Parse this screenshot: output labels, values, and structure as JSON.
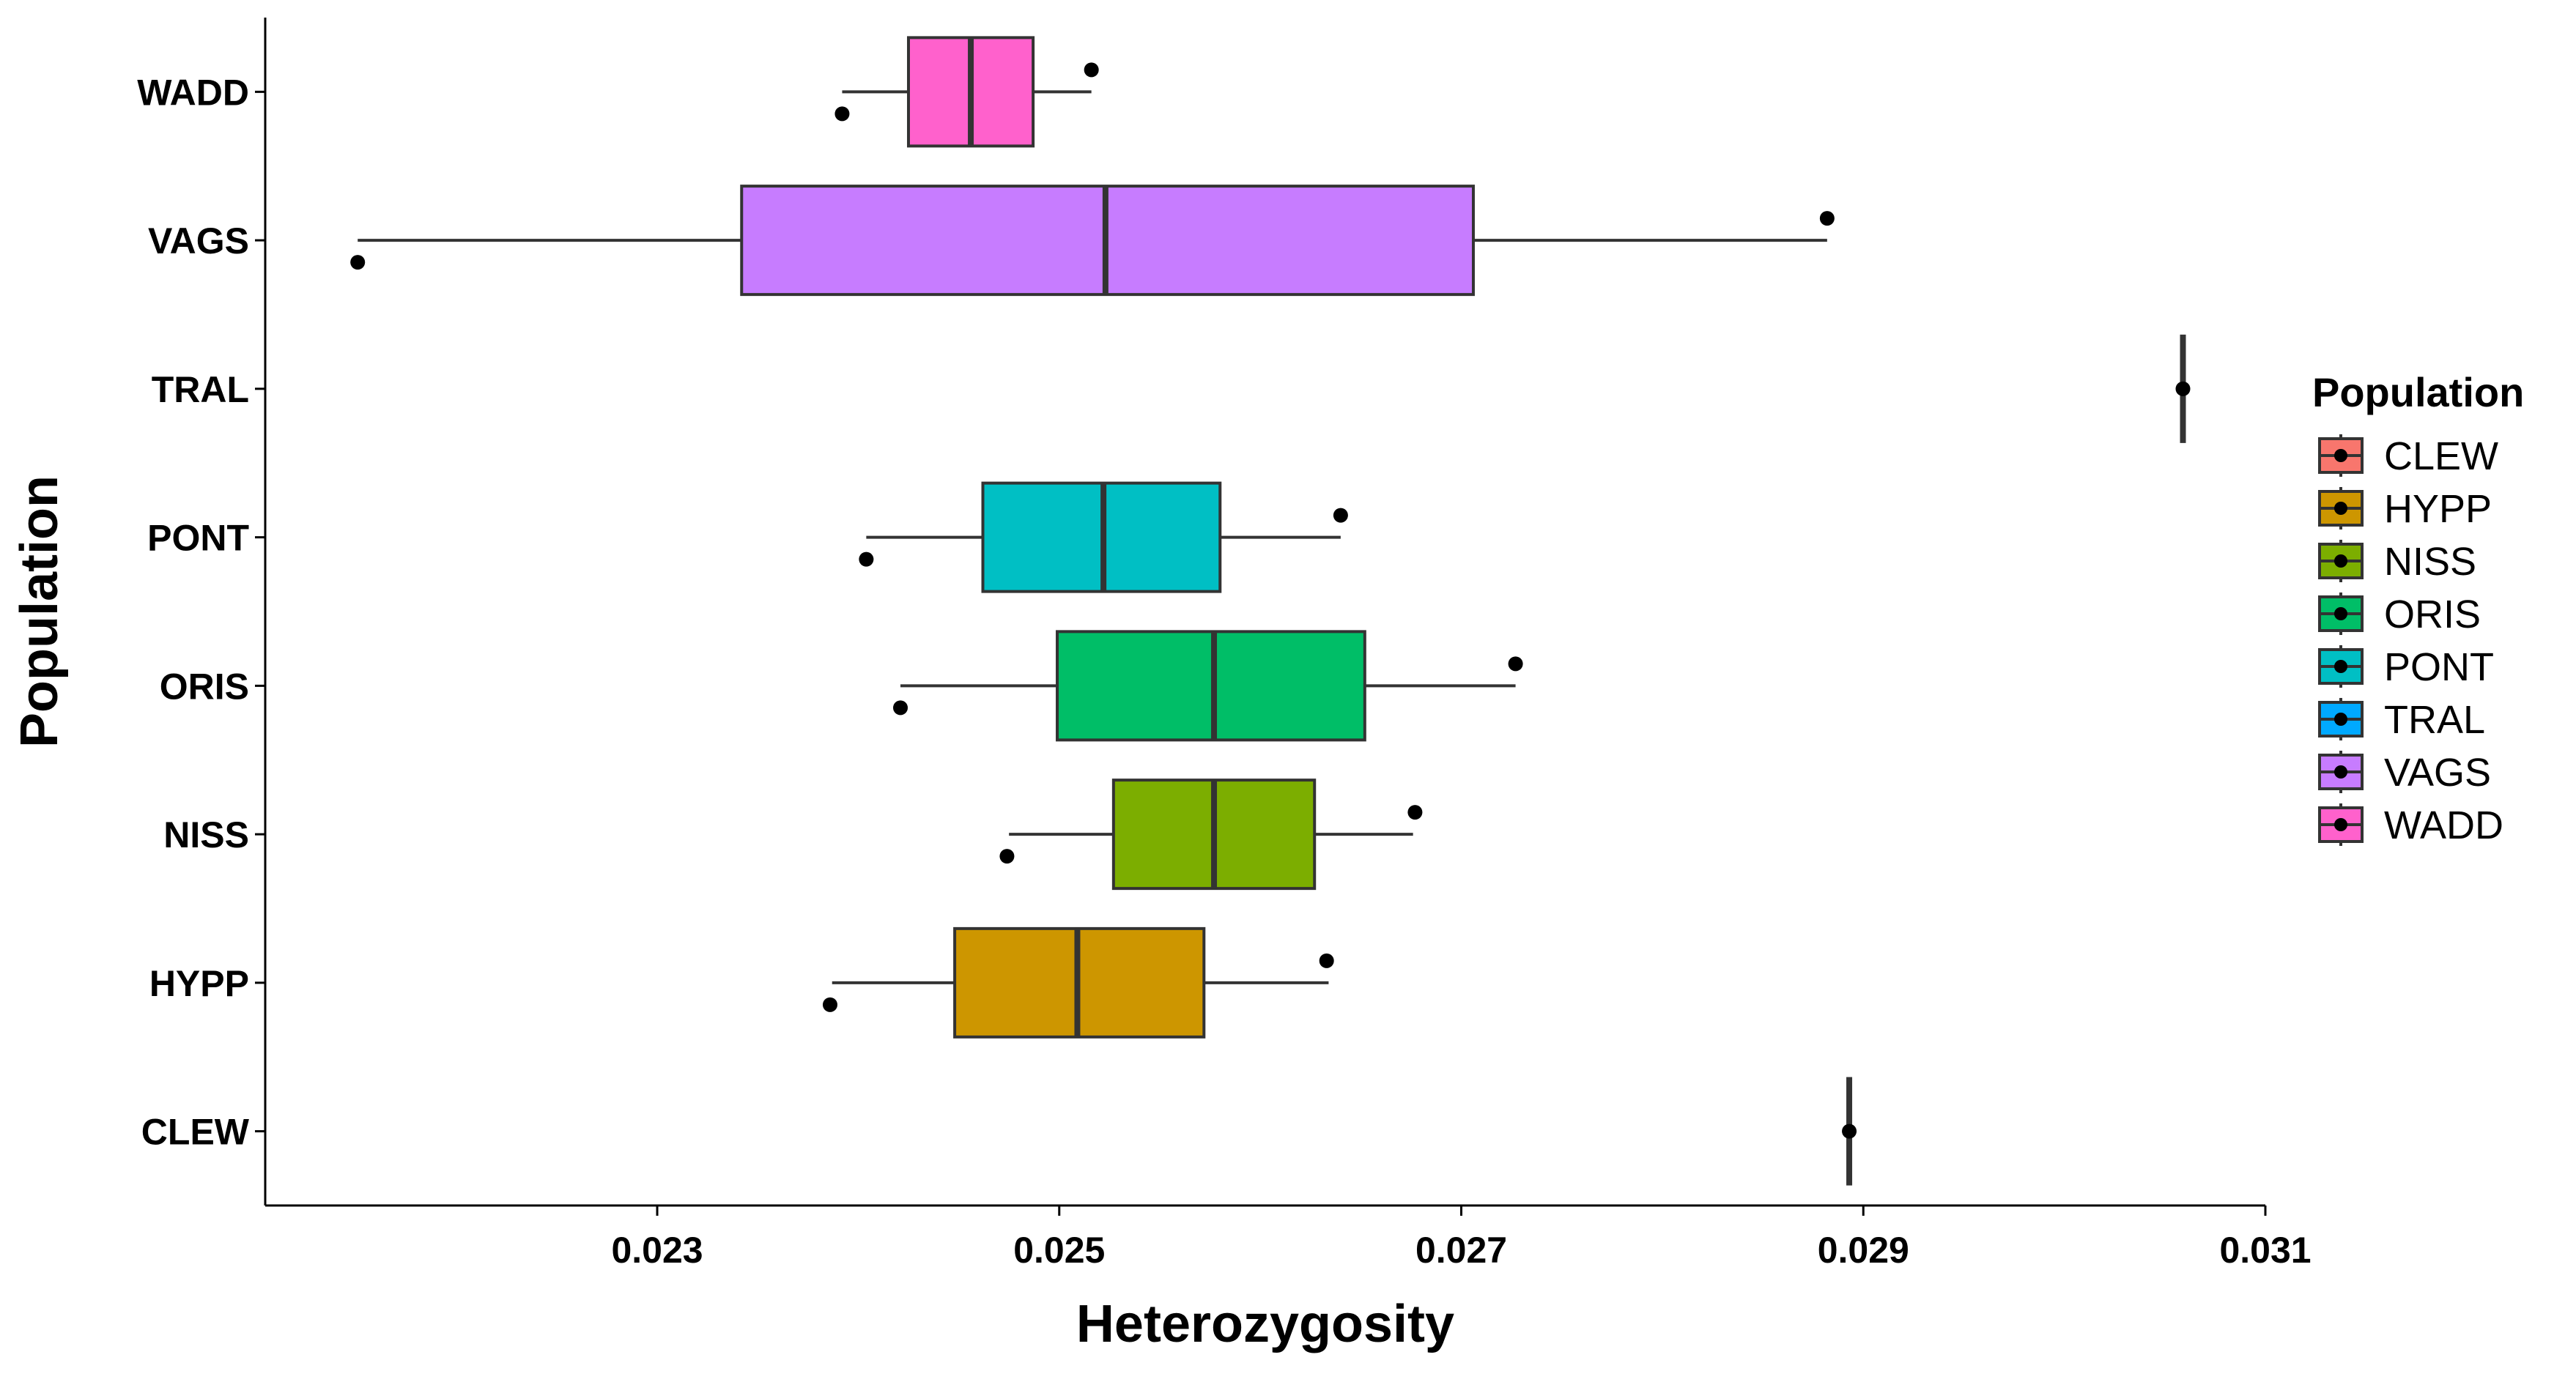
{
  "chart_data": {
    "type": "boxplot",
    "orientation": "horizontal",
    "xlabel": "Heterozygosity",
    "ylabel": "Population",
    "xlim": [
      0.02105,
      0.031
    ],
    "xticks": [
      0.023,
      0.025,
      0.027,
      0.029,
      0.031
    ],
    "xtick_labels": [
      "0.023",
      "0.025",
      "0.027",
      "0.029",
      "0.031"
    ],
    "categories": [
      "CLEW",
      "HYPP",
      "NISS",
      "ORIS",
      "PONT",
      "TRAL",
      "VAGS",
      "WADD"
    ],
    "grid": false,
    "legend": {
      "title": "Population",
      "position": "right",
      "entries": [
        "CLEW",
        "HYPP",
        "NISS",
        "ORIS",
        "PONT",
        "TRAL",
        "VAGS",
        "WADD"
      ]
    },
    "colors": {
      "CLEW": "#F8766D",
      "HYPP": "#CD9600",
      "NISS": "#7CAE00",
      "ORIS": "#00BE67",
      "PONT": "#00BFC4",
      "TRAL": "#00A9FF",
      "VAGS": "#C77CFF",
      "WADD": "#FF61CC"
    },
    "series": [
      {
        "category": "CLEW",
        "whisker_low": 0.02893,
        "q1": 0.02893,
        "median": 0.02893,
        "q3": 0.02893,
        "whisker_high": 0.02893,
        "points": [
          0.02893
        ]
      },
      {
        "category": "HYPP",
        "whisker_low": 0.02387,
        "q1": 0.02448,
        "median": 0.02509,
        "q3": 0.02572,
        "whisker_high": 0.02634,
        "points": [
          0.02386,
          0.02633
        ]
      },
      {
        "category": "NISS",
        "whisker_low": 0.02475,
        "q1": 0.02527,
        "median": 0.02577,
        "q3": 0.02627,
        "whisker_high": 0.02676,
        "points": [
          0.02474,
          0.02677
        ]
      },
      {
        "category": "ORIS",
        "whisker_low": 0.02421,
        "q1": 0.02499,
        "median": 0.02577,
        "q3": 0.02652,
        "whisker_high": 0.02727,
        "points": [
          0.02421,
          0.02727
        ]
      },
      {
        "category": "PONT",
        "whisker_low": 0.02404,
        "q1": 0.02462,
        "median": 0.02522,
        "q3": 0.0258,
        "whisker_high": 0.0264,
        "points": [
          0.02404,
          0.0264
        ]
      },
      {
        "category": "TRAL",
        "whisker_low": 0.03059,
        "q1": 0.03059,
        "median": 0.03059,
        "q3": 0.03059,
        "whisker_high": 0.03059,
        "points": [
          0.03059
        ]
      },
      {
        "category": "VAGS",
        "whisker_low": 0.02151,
        "q1": 0.02342,
        "median": 0.02523,
        "q3": 0.02706,
        "whisker_high": 0.02882,
        "points": [
          0.02151,
          0.02882
        ]
      },
      {
        "category": "WADD",
        "whisker_low": 0.02392,
        "q1": 0.02425,
        "median": 0.02456,
        "q3": 0.02487,
        "whisker_high": 0.02516,
        "points": [
          0.02392,
          0.02516
        ]
      }
    ]
  }
}
